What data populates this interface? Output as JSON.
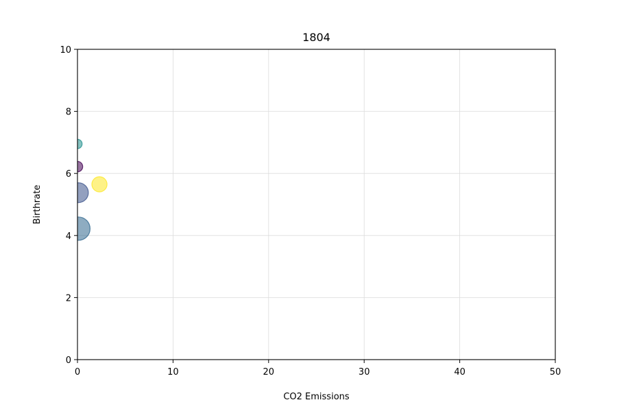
{
  "chart_data": {
    "type": "scatter",
    "title": "1804",
    "xlabel": "CO2 Emissions",
    "ylabel": "Birthrate",
    "xlim": [
      0,
      50
    ],
    "ylim": [
      0,
      10
    ],
    "xticks": [
      0,
      10,
      20,
      30,
      40,
      50
    ],
    "yticks": [
      0,
      2,
      4,
      6,
      8,
      10
    ],
    "xtick_labels": [
      "0",
      "10",
      "20",
      "30",
      "40",
      "50"
    ],
    "ytick_labels": [
      "0",
      "2",
      "4",
      "6",
      "8",
      "10"
    ],
    "grid": true,
    "points": [
      {
        "x": 0.0,
        "y": 6.95,
        "size": 0.4,
        "color": "#21908d"
      },
      {
        "x": 0.0,
        "y": 6.22,
        "size": 0.45,
        "color": "#440154"
      },
      {
        "x": 2.3,
        "y": 5.65,
        "size": 0.65,
        "color": "#fde725"
      },
      {
        "x": 0.1,
        "y": 5.38,
        "size": 0.85,
        "color": "#3b528b"
      },
      {
        "x": 0.1,
        "y": 4.22,
        "size": 1.0,
        "color": "#31688e"
      }
    ]
  }
}
